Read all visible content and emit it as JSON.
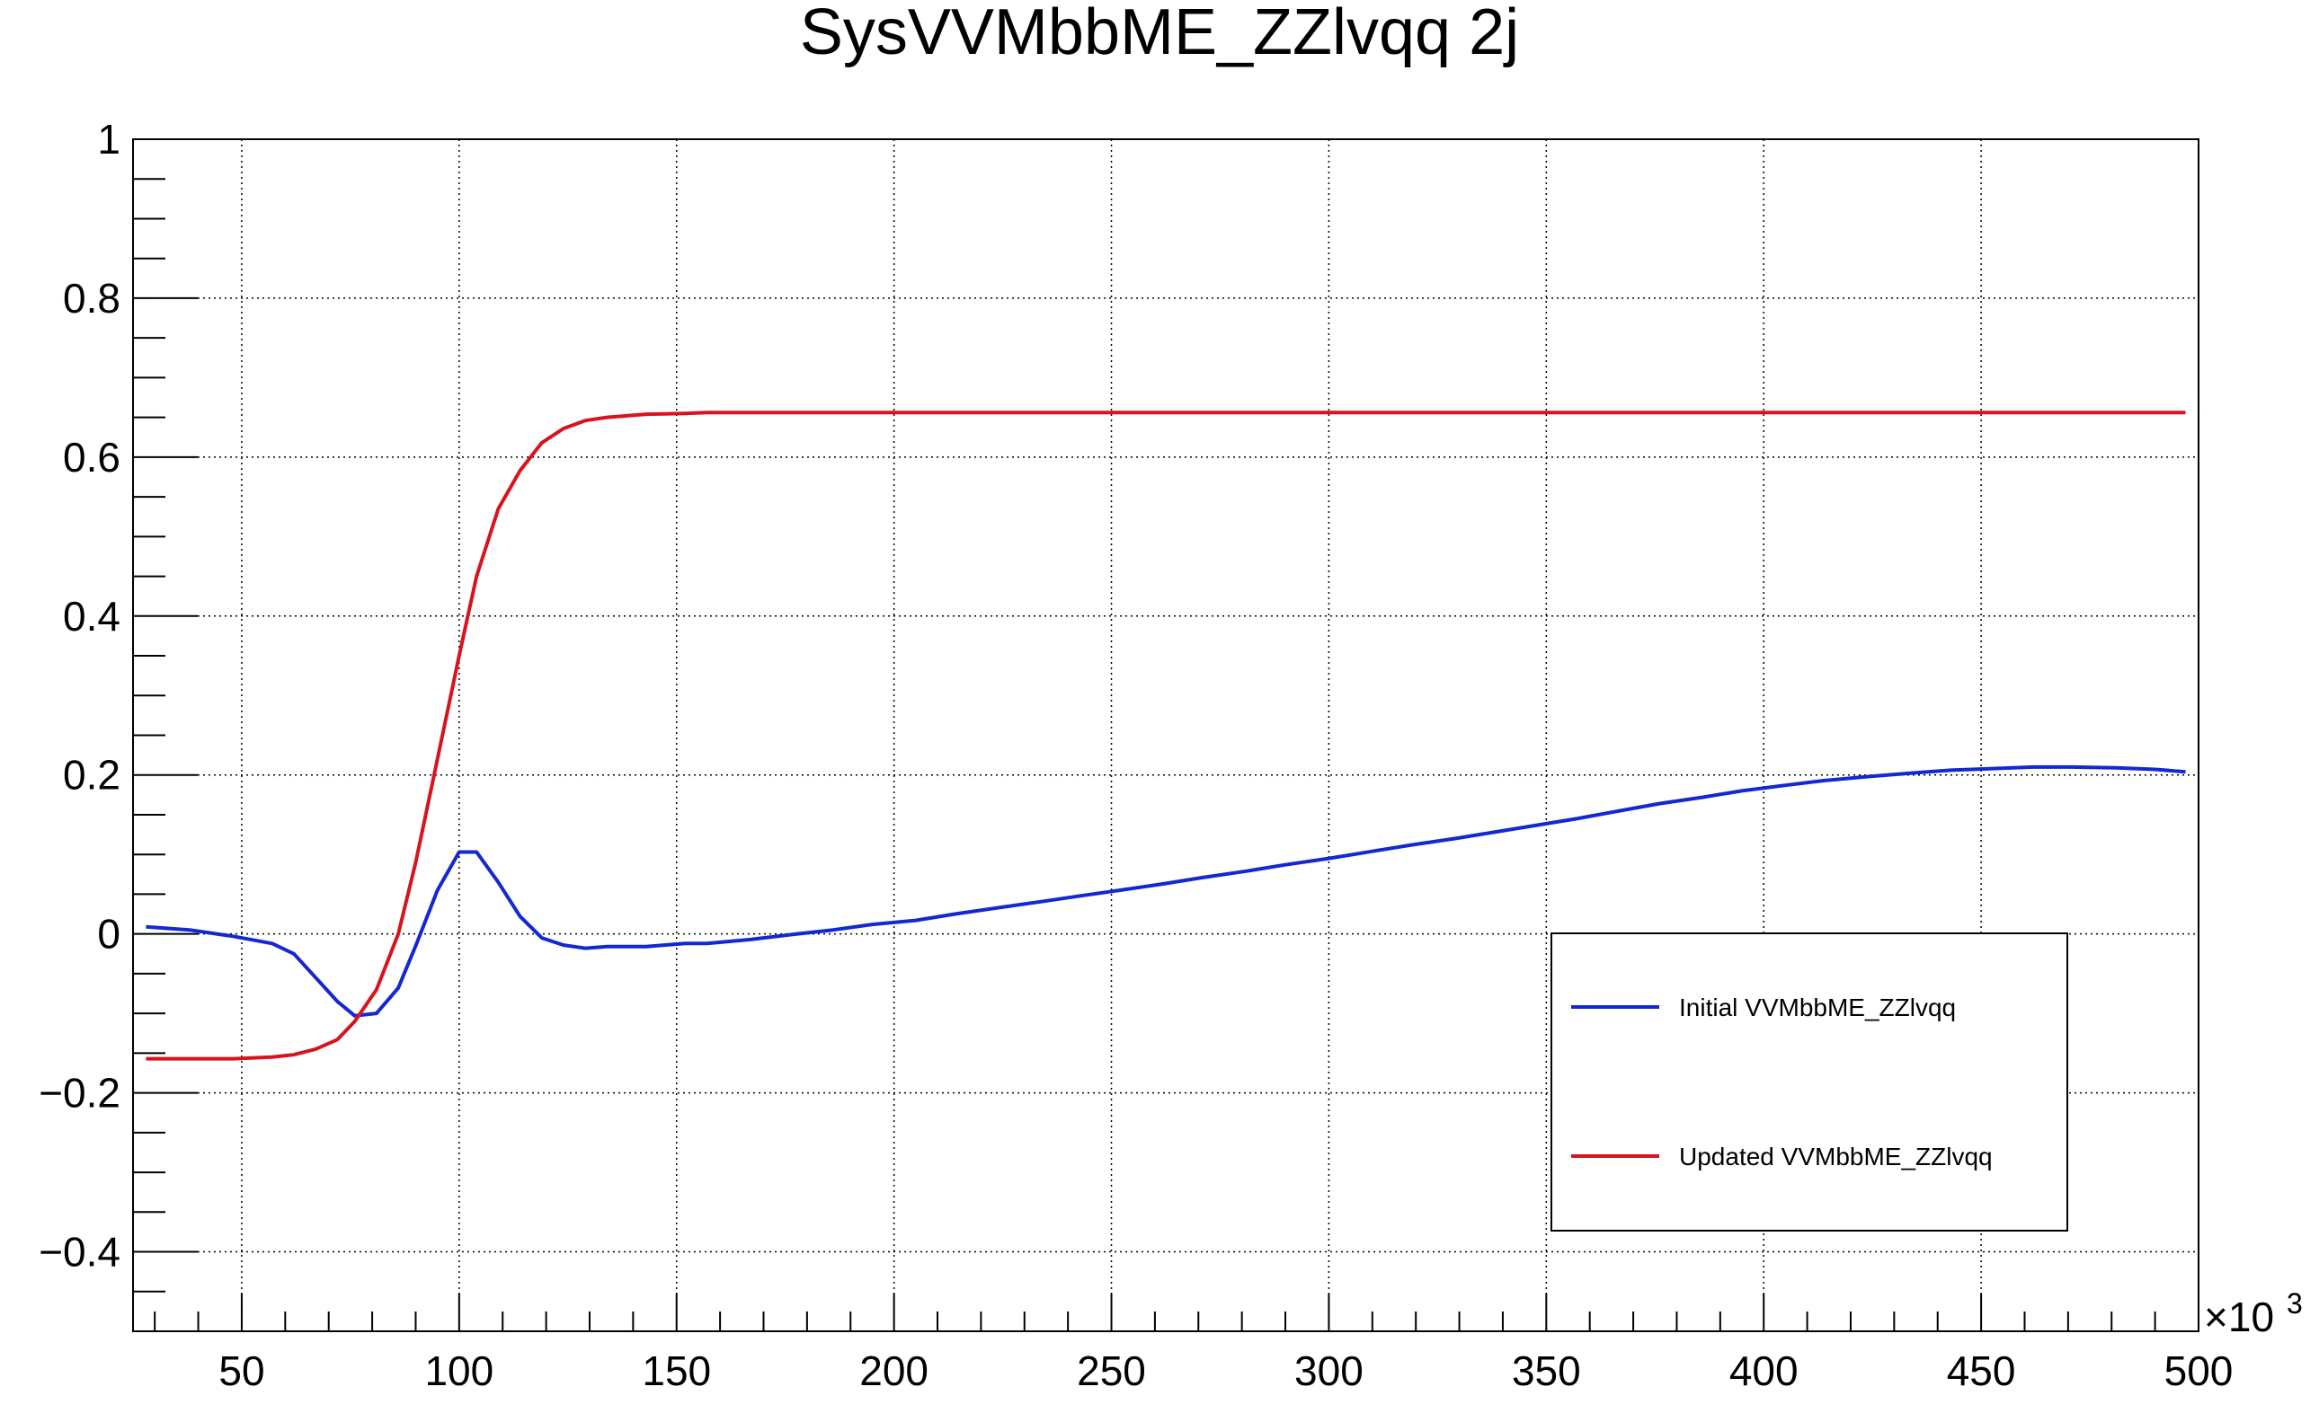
{
  "chart_data": {
    "type": "line",
    "title": "SysVVMbbME_ZZlvqq 2j",
    "xlabel": "",
    "ylabel": "",
    "x_multiplier_label": "×10",
    "x_multiplier_exp": "3",
    "xlim": [
      25,
      500
    ],
    "ylim": [
      -0.5,
      1.0
    ],
    "x_ticks": [
      50,
      100,
      150,
      200,
      250,
      300,
      350,
      400,
      450,
      500
    ],
    "x_tick_labels": [
      "50",
      "100",
      "150",
      "200",
      "250",
      "300",
      "350",
      "400",
      "450",
      "500"
    ],
    "y_ticks": [
      -0.4,
      -0.2,
      0,
      0.2,
      0.4,
      0.6,
      0.8,
      1.0
    ],
    "y_tick_labels": [
      "−0.4",
      "−0.2",
      "0",
      "0.2",
      "0.4",
      "0.6",
      "0.8",
      "1"
    ],
    "grid": true,
    "legend_position": "bottom-right",
    "series": [
      {
        "name": "Initial VVMbbME_ZZlvqq",
        "color": "#1428d2",
        "points": [
          [
            28,
            0.009
          ],
          [
            38,
            0.005
          ],
          [
            48,
            -0.003
          ],
          [
            57,
            -0.012
          ],
          [
            62,
            -0.025
          ],
          [
            67,
            -0.055
          ],
          [
            72,
            -0.085
          ],
          [
            76,
            -0.103
          ],
          [
            81,
            -0.1
          ],
          [
            86,
            -0.068
          ],
          [
            90,
            -0.015
          ],
          [
            95,
            0.055
          ],
          [
            100,
            0.103
          ],
          [
            104,
            0.103
          ],
          [
            109,
            0.065
          ],
          [
            114,
            0.022
          ],
          [
            119,
            -0.005
          ],
          [
            124,
            -0.014
          ],
          [
            129,
            -0.018
          ],
          [
            134,
            -0.016
          ],
          [
            143,
            -0.016
          ],
          [
            152,
            -0.012
          ],
          [
            157,
            -0.012
          ],
          [
            167,
            -0.007
          ],
          [
            176,
            -0.001
          ],
          [
            186,
            0.005
          ],
          [
            195,
            0.012
          ],
          [
            205,
            0.017
          ],
          [
            214,
            0.025
          ],
          [
            224,
            0.033
          ],
          [
            233,
            0.04
          ],
          [
            243,
            0.048
          ],
          [
            252,
            0.055
          ],
          [
            262,
            0.063
          ],
          [
            271,
            0.071
          ],
          [
            281,
            0.079
          ],
          [
            290,
            0.087
          ],
          [
            300,
            0.095
          ],
          [
            310,
            0.104
          ],
          [
            319,
            0.112
          ],
          [
            329,
            0.12
          ],
          [
            338,
            0.128
          ],
          [
            348,
            0.137
          ],
          [
            357,
            0.145
          ],
          [
            367,
            0.155
          ],
          [
            376,
            0.164
          ],
          [
            386,
            0.172
          ],
          [
            395,
            0.18
          ],
          [
            405,
            0.187
          ],
          [
            414,
            0.193
          ],
          [
            424,
            0.198
          ],
          [
            433,
            0.202
          ],
          [
            443,
            0.206
          ],
          [
            452,
            0.208
          ],
          [
            462,
            0.21
          ],
          [
            471,
            0.21
          ],
          [
            481,
            0.209
          ],
          [
            490,
            0.207
          ],
          [
            497,
            0.204
          ]
        ]
      },
      {
        "name": "Updated VVMbbME_ZZlvqq",
        "color": "#d7141e",
        "points": [
          [
            28,
            -0.157
          ],
          [
            38,
            -0.157
          ],
          [
            48,
            -0.157
          ],
          [
            57,
            -0.155
          ],
          [
            62,
            -0.152
          ],
          [
            67,
            -0.145
          ],
          [
            72,
            -0.133
          ],
          [
            76,
            -0.11
          ],
          [
            81,
            -0.07
          ],
          [
            86,
            0.0
          ],
          [
            90,
            0.09
          ],
          [
            95,
            0.22
          ],
          [
            100,
            0.35
          ],
          [
            104,
            0.45
          ],
          [
            109,
            0.535
          ],
          [
            114,
            0.583
          ],
          [
            119,
            0.618
          ],
          [
            124,
            0.636
          ],
          [
            129,
            0.646
          ],
          [
            134,
            0.65
          ],
          [
            143,
            0.654
          ],
          [
            152,
            0.655
          ],
          [
            157,
            0.656
          ],
          [
            200,
            0.656
          ],
          [
            300,
            0.656
          ],
          [
            400,
            0.656
          ],
          [
            497,
            0.656
          ]
        ]
      }
    ]
  }
}
